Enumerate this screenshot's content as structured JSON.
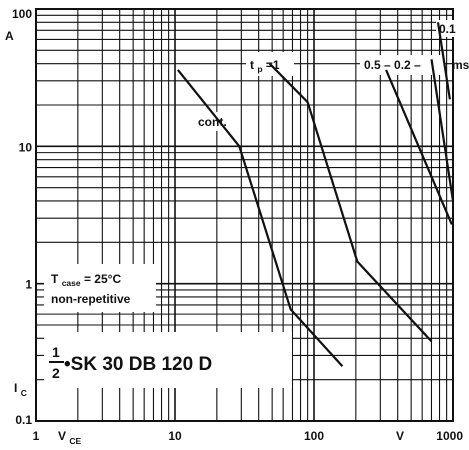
{
  "chart_data": {
    "type": "line",
    "x_scale": "log",
    "y_scale": "log",
    "xlim": [
      1,
      1000
    ],
    "ylim": [
      0.1,
      100
    ],
    "grid": true,
    "x_tick_labels": [
      {
        "value": 1,
        "text": "1"
      },
      {
        "value": 10,
        "text": "10"
      },
      {
        "value": 100,
        "text": "100"
      },
      {
        "value": 1000,
        "text": "1000"
      }
    ],
    "y_tick_labels": [
      {
        "value": 100,
        "text": "100"
      },
      {
        "value": 10,
        "text": "10"
      },
      {
        "value": 1,
        "text": "1"
      },
      {
        "value": 0.1,
        "text": "0.1"
      }
    ],
    "x_label": {
      "main": "V",
      "sub": "CE"
    },
    "x_unit": "V",
    "y_label": {
      "main": "I",
      "sub": "C"
    },
    "y_unit": "A",
    "series": [
      {
        "name": "cont.",
        "points": [
          [
            10.5,
            36
          ],
          [
            29,
            10
          ],
          [
            68,
            0.65
          ],
          [
            160,
            0.25
          ]
        ]
      },
      {
        "name": "t_p=1",
        "points": [
          [
            48,
            40
          ],
          [
            90,
            21
          ],
          [
            205,
            1.45
          ],
          [
            700,
            0.38
          ]
        ]
      },
      {
        "name": "0.5",
        "points": [
          [
            330,
            36
          ],
          [
            980,
            2.7
          ]
        ]
      },
      {
        "name": "0.2",
        "points": [
          [
            700,
            43
          ],
          [
            1000,
            4
          ]
        ]
      },
      {
        "name": "0.1",
        "points": [
          [
            780,
            80
          ],
          [
            950,
            22
          ]
        ]
      }
    ],
    "annotations": {
      "cont": "cont.",
      "tp_main": "t",
      "tp_sub": "p",
      "tp_value": "=1",
      "ms_group": "0.5 – 0.2 –",
      "t01": "0.1",
      "ms_unit": "ms",
      "tcase_main": "T",
      "tcase_sub": "case",
      "tcase_value": "= 25°C",
      "nonrep": "non-repetitive"
    },
    "title": {
      "frac_num": "1",
      "frac_den": "2",
      "text": "•SK  30  DB  120  D"
    }
  }
}
